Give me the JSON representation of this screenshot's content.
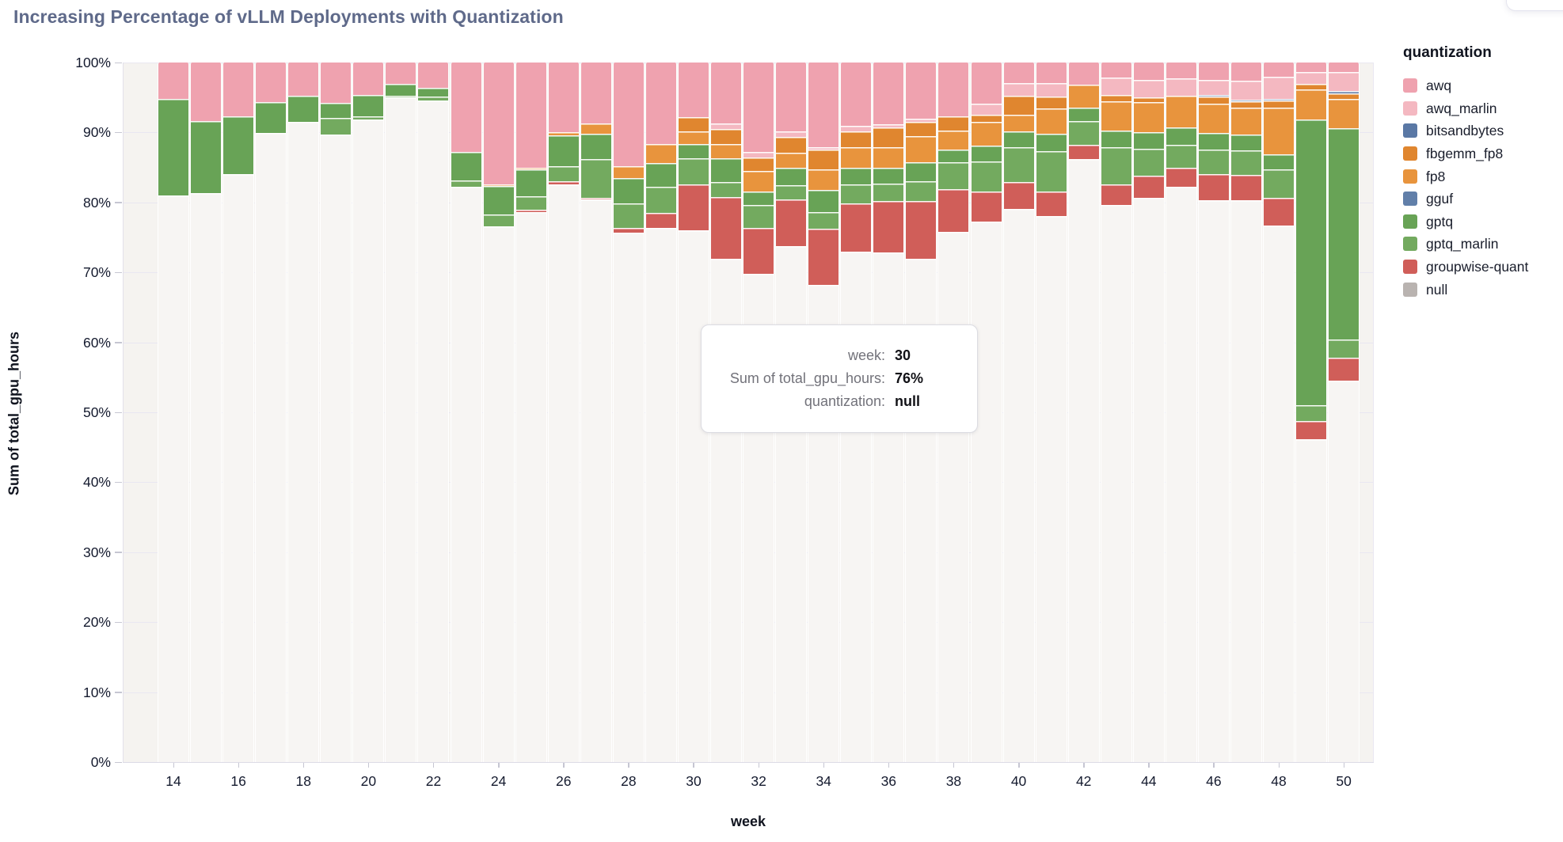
{
  "title": "Increasing Percentage of vLLM Deployments with Quantization",
  "x_axis": {
    "label": "week",
    "ticks": [
      "14",
      "16",
      "18",
      "20",
      "22",
      "24",
      "26",
      "28",
      "30",
      "32",
      "34",
      "36",
      "38",
      "40",
      "42",
      "44",
      "46",
      "48",
      "50"
    ]
  },
  "y_axis": {
    "label": "Sum of total_gpu_hours",
    "ticks": [
      "100%",
      "90%",
      "80%",
      "70%",
      "60%",
      "50%",
      "40%",
      "30%",
      "20%",
      "10%",
      "0%"
    ]
  },
  "legend": {
    "title": "quantization",
    "items": [
      {
        "label": "awq",
        "color": "#efa2af"
      },
      {
        "label": "awq_marlin",
        "color": "#f4b8c1"
      },
      {
        "label": "bitsandbytes",
        "color": "#5a78a5"
      },
      {
        "label": "fbgemm_fp8",
        "color": "#e0862f"
      },
      {
        "label": "fp8",
        "color": "#e8943d"
      },
      {
        "label": "gguf",
        "color": "#617fa9"
      },
      {
        "label": "gptq",
        "color": "#68a356"
      },
      {
        "label": "gptq_marlin",
        "color": "#73aa5f"
      },
      {
        "label": "groupwise-quant",
        "color": "#d05e59"
      },
      {
        "label": "null",
        "color": "#b9b3b0"
      }
    ]
  },
  "tooltip": {
    "rows": [
      {
        "label": "week:",
        "value": "30"
      },
      {
        "label": "Sum of total_gpu_hours:",
        "value": "76%"
      },
      {
        "label": "quantization:",
        "value": "null"
      }
    ]
  },
  "chart_data": {
    "type": "bar",
    "stacked": true,
    "percent_normalized": true,
    "title": "Increasing Percentage of vLLM Deployments with Quantization",
    "xlabel": "week",
    "ylabel": "Sum of total_gpu_hours",
    "ylim": [
      0,
      100
    ],
    "y_unit": "%",
    "grid": true,
    "legend_position": "right",
    "categories": [
      14,
      15,
      16,
      17,
      18,
      19,
      20,
      21,
      22,
      23,
      24,
      25,
      26,
      27,
      28,
      29,
      30,
      31,
      32,
      33,
      34,
      35,
      36,
      37,
      38,
      39,
      40,
      41,
      42,
      43,
      44,
      45,
      46,
      47,
      48,
      49,
      50
    ],
    "stack_order_top_to_bottom": [
      "awq",
      "awq_marlin",
      "bitsandbytes",
      "fbgemm_fp8",
      "fp8",
      "gguf",
      "gptq",
      "gptq_marlin",
      "groupwise-quant",
      "null"
    ],
    "null_bar_fill": "#f7f5f3",
    "series": [
      {
        "name": "awq",
        "color": "#efa2af",
        "values": [
          5.2,
          8.4,
          7.7,
          5.7,
          4.8,
          5.8,
          4.6,
          3.1,
          3.6,
          12.8,
          17.4,
          15.0,
          10.0,
          8.7,
          14.8,
          11.7,
          7.8,
          8.7,
          12.8,
          9.8,
          12.1,
          9.0,
          8.8,
          8.0,
          7.7,
          5.9,
          2.9,
          2.9,
          3.2,
          2.1,
          2.5,
          2.3,
          2.5,
          2.6,
          2.0,
          1.4,
          1.4
        ]
      },
      {
        "name": "awq_marlin",
        "color": "#f4b8c1",
        "values": [
          0,
          0,
          0,
          0,
          0,
          0,
          0,
          0,
          0,
          0,
          0,
          0,
          0,
          0,
          0,
          0,
          0,
          0.8,
          0.8,
          0.8,
          0.4,
          0.8,
          0.5,
          0.5,
          0,
          1.6,
          1.9,
          2.0,
          0,
          2.5,
          2.5,
          2.4,
          2.1,
          2.7,
          3.2,
          1.7,
          2.7
        ]
      },
      {
        "name": "bitsandbytes",
        "color": "#5a78a5",
        "values": [
          0,
          0,
          0,
          0,
          0,
          0,
          0,
          0,
          0,
          0,
          0,
          0,
          0,
          0,
          0,
          0,
          0,
          0,
          0,
          0,
          0,
          0,
          0,
          0,
          0,
          0,
          0,
          0,
          0,
          0,
          0,
          0,
          0.3,
          0.3,
          0.2,
          0,
          0.3
        ]
      },
      {
        "name": "fbgemm_fp8",
        "color": "#e0862f",
        "values": [
          0,
          0,
          0,
          0,
          0,
          0,
          0,
          0,
          0,
          0,
          0,
          0,
          0,
          0,
          0,
          0,
          2.0,
          2.2,
          1.9,
          2.3,
          2.8,
          2.3,
          2.8,
          2.0,
          2.0,
          1.0,
          2.7,
          1.7,
          0,
          0.9,
          0.7,
          0,
          1.0,
          0.8,
          1.0,
          0.7,
          0.8
        ]
      },
      {
        "name": "fp8",
        "color": "#e8943d",
        "values": [
          0,
          0,
          0,
          0,
          0,
          0,
          0,
          0,
          0,
          0,
          0.3,
          0.3,
          0.4,
          1.5,
          1.7,
          2.7,
          1.9,
          2.0,
          2.9,
          2.2,
          2.9,
          3.0,
          2.9,
          3.8,
          2.7,
          3.4,
          2.3,
          3.6,
          3.3,
          4.2,
          4.2,
          4.6,
          4.2,
          3.9,
          6.7,
          4.3,
          4.2
        ]
      },
      {
        "name": "gguf",
        "color": "#617fa9",
        "values": [
          0,
          0,
          0,
          0,
          0,
          0,
          0,
          0,
          0,
          0,
          0,
          0,
          0,
          0,
          0,
          0,
          0,
          0,
          0,
          0,
          0,
          0,
          0,
          0,
          0,
          0,
          0,
          0,
          0,
          0,
          0,
          0,
          0,
          0,
          0,
          0,
          0
        ]
      },
      {
        "name": "gptq",
        "color": "#68a356",
        "values": [
          13.8,
          10.3,
          8.3,
          4.4,
          3.7,
          2.1,
          3.1,
          1.6,
          1.3,
          4.1,
          4.0,
          3.8,
          4.4,
          3.6,
          3.6,
          3.4,
          2.0,
          3.4,
          2.0,
          2.4,
          3.2,
          2.3,
          2.3,
          2.7,
          1.9,
          2.3,
          2.3,
          2.5,
          1.9,
          2.4,
          2.4,
          2.5,
          2.4,
          2.3,
          2.2,
          40.9,
          30.2
        ]
      },
      {
        "name": "gptq_marlin",
        "color": "#73aa5f",
        "values": [
          0,
          0,
          0,
          0,
          0,
          2.4,
          0.4,
          0.3,
          0.5,
          0.9,
          1.7,
          2.0,
          2.2,
          5.5,
          3.5,
          3.7,
          3.7,
          2.1,
          3.2,
          2.1,
          2.4,
          2.7,
          2.5,
          2.8,
          3.8,
          4.3,
          5.0,
          5.8,
          3.4,
          5.3,
          3.9,
          3.2,
          3.5,
          3.5,
          4.0,
          2.2,
          2.6
        ]
      },
      {
        "name": "groupwise-quant",
        "color": "#d05e59",
        "values": [
          0,
          0,
          0,
          0,
          0,
          0,
          0,
          0,
          0,
          0,
          0,
          0.3,
          0.4,
          0.3,
          0.7,
          2.1,
          6.6,
          8.9,
          6.6,
          6.7,
          8.0,
          6.9,
          7.3,
          8.3,
          6.1,
          4.2,
          3.8,
          3.4,
          2.0,
          3.0,
          3.2,
          2.8,
          3.7,
          3.6,
          4.0,
          2.7,
          3.3
        ]
      },
      {
        "name": "null",
        "color": "#f7f5f3",
        "values": [
          81.0,
          81.3,
          84.0,
          89.9,
          91.5,
          89.7,
          91.9,
          95.0,
          94.6,
          82.2,
          76.6,
          78.6,
          82.6,
          80.4,
          75.7,
          76.4,
          76.0,
          71.9,
          69.8,
          73.7,
          68.2,
          73.0,
          72.9,
          71.9,
          75.8,
          77.3,
          79.1,
          78.1,
          86.2,
          79.6,
          80.6,
          82.2,
          80.3,
          80.3,
          76.7,
          46.1,
          54.5
        ]
      }
    ],
    "tooltip_highlight": {
      "week": 30,
      "sum_of_total_gpu_hours": "76%",
      "quantization": "null"
    }
  }
}
